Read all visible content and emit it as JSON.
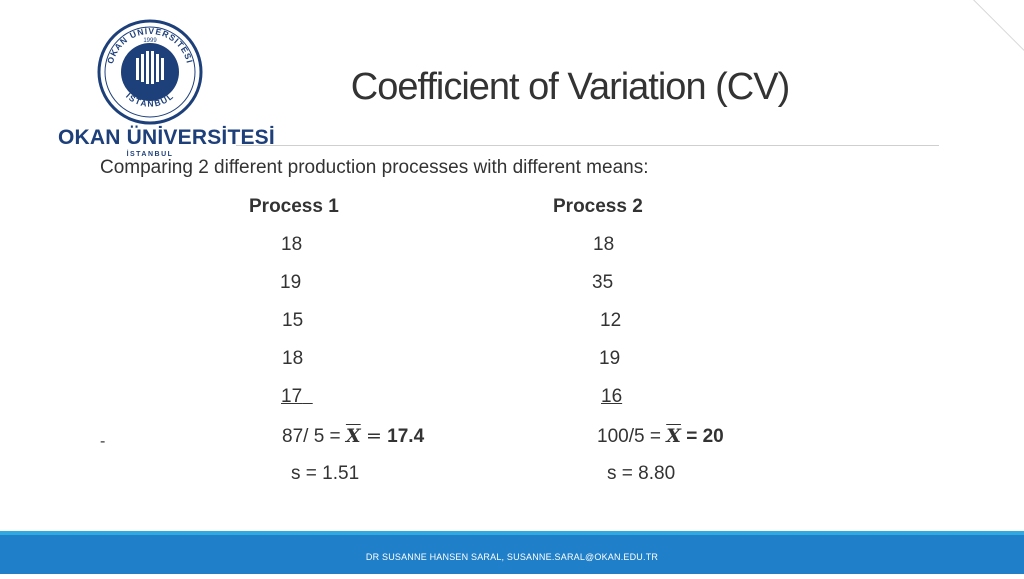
{
  "logo": {
    "name": "OKAN ÜNİVERSİTESİ",
    "city": "İSTANBUL",
    "seal_top_text": "OKAN ÜNİVERSİTESİ",
    "seal_bottom_text": "İSTANBUL",
    "seal_year": "1999",
    "brand_color": "#1d3f7a"
  },
  "title": "Coefficient of Variation (CV)",
  "intro": "Comparing 2 different production processes with different means:",
  "process1": {
    "header": "Process 1",
    "values": [
      "18",
      "19",
      "15",
      "18",
      "17"
    ],
    "mean_prefix": "87/ 5 = ",
    "mean_symbol": "X",
    "mean_eq": "=",
    "mean_value": "17.4",
    "sd": "s = 1.51"
  },
  "process2": {
    "header": "Process 2",
    "values": [
      "18",
      "35",
      "12",
      "19",
      "16"
    ],
    "mean_prefix": "100/5 = ",
    "mean_symbol": "X",
    "mean_value": "= 20",
    "sd": "s = 8.80"
  },
  "dash": "-",
  "footer": "DR SUSANNE HANSEN SARAL, SUSANNE.SARAL@OKAN.EDU.TR",
  "colors": {
    "footer": "#1f7fc8",
    "footer_accent": "#2fa9e0",
    "text": "#333333"
  }
}
